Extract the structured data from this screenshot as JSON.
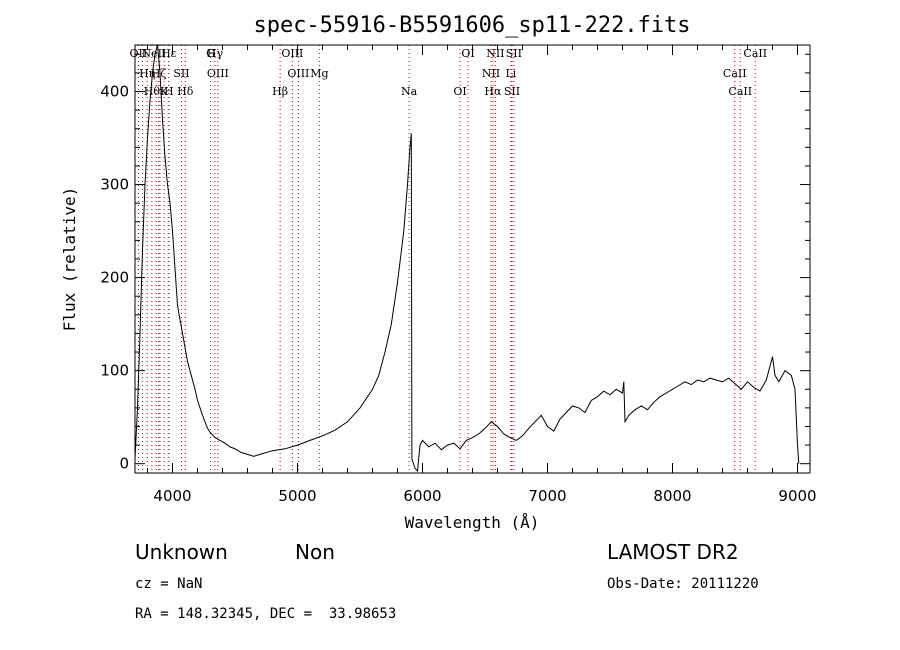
{
  "chart_data": {
    "type": "line",
    "title": "spec-55916-B5591606_sp11-222.fits",
    "xlabel": "Wavelength (Å)",
    "ylabel": "Flux (relative)",
    "xlim": [
      3700,
      9100
    ],
    "ylim": [
      -10,
      450
    ],
    "x_ticks": [
      4000,
      5000,
      6000,
      7000,
      8000,
      9000
    ],
    "y_ticks": [
      0,
      100,
      200,
      300,
      400
    ],
    "grid": false,
    "series": [
      {
        "values": [
          [
            3700,
            5
          ],
          [
            3720,
            60
          ],
          [
            3740,
            140
          ],
          [
            3760,
            230
          ],
          [
            3780,
            300
          ],
          [
            3800,
            350
          ],
          [
            3820,
            390
          ],
          [
            3840,
            420
          ],
          [
            3860,
            440
          ],
          [
            3880,
            450
          ],
          [
            3900,
            420
          ],
          [
            3920,
            370
          ],
          [
            3940,
            330
          ],
          [
            3960,
            300
          ],
          [
            3980,
            280
          ],
          [
            4000,
            250
          ],
          [
            4020,
            210
          ],
          [
            4040,
            170
          ],
          [
            4060,
            155
          ],
          [
            4080,
            140
          ],
          [
            4100,
            125
          ],
          [
            4120,
            110
          ],
          [
            4140,
            100
          ],
          [
            4160,
            90
          ],
          [
            4180,
            80
          ],
          [
            4200,
            68
          ],
          [
            4220,
            60
          ],
          [
            4240,
            52
          ],
          [
            4260,
            45
          ],
          [
            4280,
            38
          ],
          [
            4300,
            34
          ],
          [
            4340,
            28
          ],
          [
            4380,
            25
          ],
          [
            4420,
            22
          ],
          [
            4460,
            18
          ],
          [
            4500,
            16
          ],
          [
            4550,
            12
          ],
          [
            4600,
            10
          ],
          [
            4650,
            8
          ],
          [
            4700,
            10
          ],
          [
            4800,
            14
          ],
          [
            4900,
            16
          ],
          [
            5000,
            20
          ],
          [
            5100,
            25
          ],
          [
            5200,
            30
          ],
          [
            5300,
            36
          ],
          [
            5400,
            45
          ],
          [
            5500,
            60
          ],
          [
            5600,
            80
          ],
          [
            5650,
            95
          ],
          [
            5700,
            120
          ],
          [
            5750,
            150
          ],
          [
            5800,
            195
          ],
          [
            5850,
            250
          ],
          [
            5880,
            300
          ],
          [
            5900,
            340
          ],
          [
            5910,
            355
          ],
          [
            5915,
            5
          ],
          [
            5940,
            -5
          ],
          [
            5960,
            -8
          ],
          [
            5980,
            20
          ],
          [
            6000,
            25
          ],
          [
            6050,
            18
          ],
          [
            6100,
            22
          ],
          [
            6150,
            15
          ],
          [
            6200,
            20
          ],
          [
            6250,
            22
          ],
          [
            6300,
            16
          ],
          [
            6350,
            25
          ],
          [
            6400,
            28
          ],
          [
            6450,
            32
          ],
          [
            6500,
            38
          ],
          [
            6550,
            45
          ],
          [
            6600,
            40
          ],
          [
            6650,
            32
          ],
          [
            6700,
            28
          ],
          [
            6750,
            25
          ],
          [
            6800,
            30
          ],
          [
            6850,
            38
          ],
          [
            6900,
            45
          ],
          [
            6950,
            52
          ],
          [
            7000,
            40
          ],
          [
            7050,
            35
          ],
          [
            7100,
            48
          ],
          [
            7150,
            55
          ],
          [
            7200,
            62
          ],
          [
            7250,
            60
          ],
          [
            7300,
            55
          ],
          [
            7350,
            68
          ],
          [
            7400,
            72
          ],
          [
            7450,
            78
          ],
          [
            7500,
            74
          ],
          [
            7550,
            80
          ],
          [
            7600,
            76
          ],
          [
            7610,
            88
          ],
          [
            7620,
            45
          ],
          [
            7650,
            52
          ],
          [
            7700,
            58
          ],
          [
            7750,
            62
          ],
          [
            7800,
            58
          ],
          [
            7850,
            66
          ],
          [
            7900,
            72
          ],
          [
            7950,
            76
          ],
          [
            8000,
            80
          ],
          [
            8050,
            84
          ],
          [
            8100,
            88
          ],
          [
            8150,
            85
          ],
          [
            8200,
            90
          ],
          [
            8250,
            88
          ],
          [
            8300,
            92
          ],
          [
            8350,
            90
          ],
          [
            8400,
            88
          ],
          [
            8450,
            92
          ],
          [
            8500,
            86
          ],
          [
            8550,
            80
          ],
          [
            8600,
            88
          ],
          [
            8650,
            82
          ],
          [
            8700,
            78
          ],
          [
            8750,
            90
          ],
          [
            8800,
            115
          ],
          [
            8820,
            95
          ],
          [
            8850,
            88
          ],
          [
            8900,
            100
          ],
          [
            8950,
            95
          ],
          [
            8980,
            80
          ],
          [
            9000,
            20
          ],
          [
            9010,
            0
          ]
        ]
      }
    ],
    "line_markers": {
      "red": [
        {
          "x": 3727,
          "label": "OII"
        },
        {
          "x": 3798,
          "label": "Hη"
        },
        {
          "x": 3835,
          "label": "Hθ"
        },
        {
          "x": 3869,
          "label": "NeIII"
        },
        {
          "x": 3889,
          "label": "Hζ"
        },
        {
          "x": 3933,
          "label": "K"
        },
        {
          "x": 3970,
          "label": "Hε"
        },
        {
          "x": 4072,
          "label": "SII"
        },
        {
          "x": 4102,
          "label": "Hδ"
        },
        {
          "x": 4340,
          "label": "Hγ"
        },
        {
          "x": 4363,
          "label": "OIII"
        },
        {
          "x": 4861,
          "label": "Hβ"
        },
        {
          "x": 4959,
          "label": "OIII"
        },
        {
          "x": 5007,
          "label": "OIII"
        },
        {
          "x": 6300,
          "label": "OI"
        },
        {
          "x": 6364,
          "label": "OI"
        },
        {
          "x": 6548,
          "label": "NII"
        },
        {
          "x": 6563,
          "label": "Hα"
        },
        {
          "x": 6583,
          "label": "NII"
        },
        {
          "x": 6707,
          "label": "Li"
        },
        {
          "x": 6716,
          "label": "SII"
        },
        {
          "x": 6731,
          "label": "SII"
        },
        {
          "x": 8498,
          "label": "CaII"
        },
        {
          "x": 8542,
          "label": "CaII"
        },
        {
          "x": 8662,
          "label": "CaII"
        }
      ],
      "black": [
        {
          "x": 3760,
          "label": ""
        },
        {
          "x": 3900,
          "label": ""
        },
        {
          "x": 3970,
          "label": "H"
        },
        {
          "x": 4304,
          "label": "G"
        },
        {
          "x": 5175,
          "label": "Mg"
        },
        {
          "x": 5893,
          "label": "Na"
        }
      ]
    }
  },
  "footer": {
    "object_class": "Unknown",
    "subclass": "Non",
    "survey": "LAMOST DR2",
    "cz": "cz = NaN",
    "obs_date": "Obs-Date: 20111220",
    "coords": "RA = 148.32345, DEC =  33.98653"
  }
}
